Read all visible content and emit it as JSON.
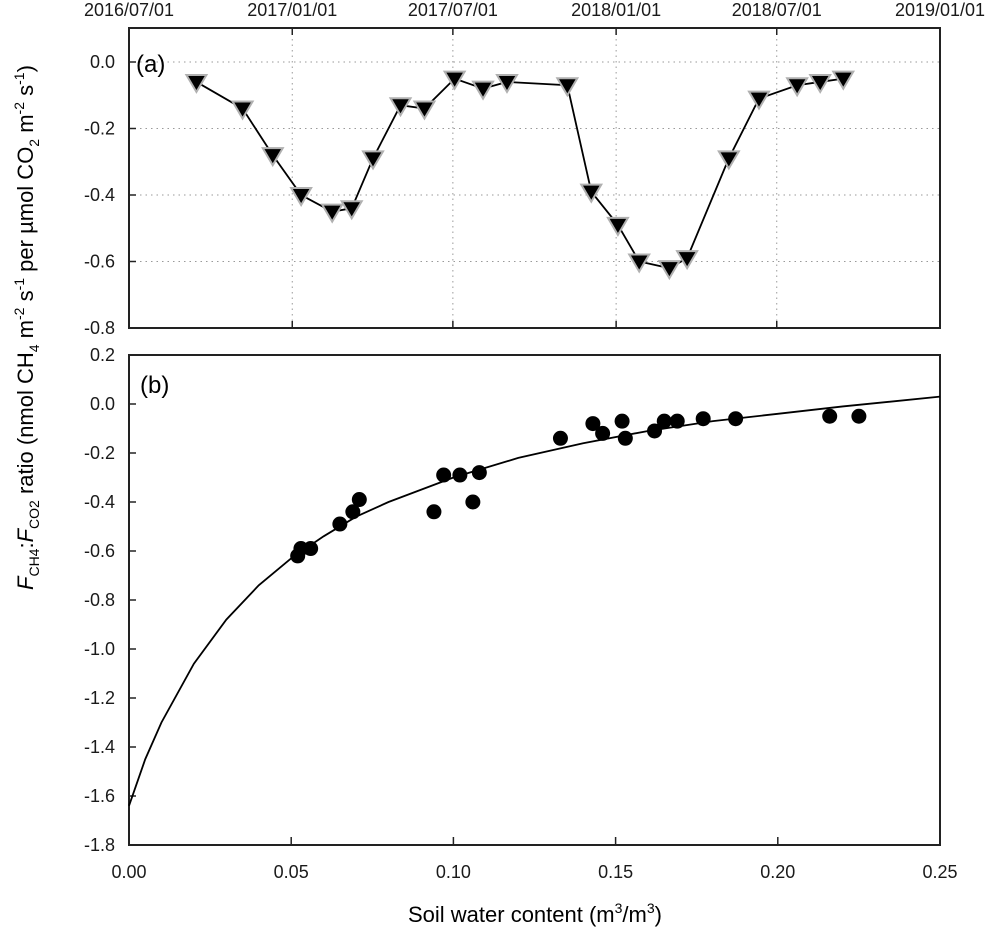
{
  "chart_data": [
    {
      "panel": "(a)",
      "type": "line",
      "marker": "triangle-down",
      "top_axis_label": "",
      "x_tick_labels": [
        "2016/07/01",
        "2017/01/01",
        "2017/07/01",
        "2018/01/01",
        "2018/07/01",
        "2019/01/01"
      ],
      "x_range": [
        "2016/07/01",
        "2019/01/01"
      ],
      "ylim": [
        -0.8,
        0.1
      ],
      "y_ticks": [
        0.0,
        -0.2,
        -0.4,
        -0.6,
        -0.8
      ],
      "y_tick_labels": [
        "0.0",
        "-0.2",
        "-0.4",
        "-0.6",
        "-0.8"
      ],
      "grid": true,
      "series": [
        {
          "name": "FCH4:FCO2 ratio",
          "x": [
            "2016/09/15",
            "2016/11/06",
            "2016/12/10",
            "2017/01/11",
            "2017/02/15",
            "2017/03/09",
            "2017/04/02",
            "2017/05/03",
            "2017/05/30",
            "2017/07/03",
            "2017/08/04",
            "2017/08/31",
            "2017/11/07",
            "2017/12/04",
            "2018/01/03",
            "2018/01/27",
            "2018/03/02",
            "2018/03/22",
            "2018/05/08",
            "2018/06/11",
            "2018/07/24",
            "2018/08/19",
            "2018/09/14"
          ],
          "values": [
            -0.06,
            -0.14,
            -0.28,
            -0.4,
            -0.45,
            -0.44,
            -0.29,
            -0.13,
            -0.14,
            -0.05,
            -0.08,
            -0.06,
            -0.07,
            -0.39,
            -0.49,
            -0.6,
            -0.62,
            -0.59,
            -0.29,
            -0.11,
            -0.07,
            -0.06,
            -0.05
          ]
        }
      ]
    },
    {
      "panel": "(b)",
      "type": "scatter",
      "marker": "circle",
      "xlabel": "Soil water content (m3/m3)",
      "ylabel": "FCH4:FCO2 ratio (nmol CH4 m-2 s-1 per µmol CO2 m-2 s-1)",
      "xlim": [
        0.0,
        0.25
      ],
      "ylim": [
        -1.8,
        0.2
      ],
      "x_tick_labels": [
        "0.00",
        "0.05",
        "0.10",
        "0.15",
        "0.20",
        "0.25"
      ],
      "y_tick_labels": [
        "0.2",
        "0.0",
        "-0.2",
        "-0.4",
        "-0.6",
        "-0.8",
        "-1.0",
        "-1.2",
        "-1.4",
        "-1.6",
        "-1.8"
      ],
      "grid": false,
      "series": [
        {
          "name": "observations",
          "x": [
            0.052,
            0.053,
            0.056,
            0.065,
            0.069,
            0.071,
            0.094,
            0.097,
            0.102,
            0.106,
            0.108,
            0.133,
            0.143,
            0.146,
            0.152,
            0.153,
            0.162,
            0.165,
            0.169,
            0.177,
            0.187,
            0.216,
            0.225
          ],
          "values": [
            -0.62,
            -0.59,
            -0.59,
            -0.49,
            -0.44,
            -0.39,
            -0.44,
            -0.29,
            -0.29,
            -0.4,
            -0.28,
            -0.14,
            -0.08,
            -0.12,
            -0.07,
            -0.14,
            -0.11,
            -0.07,
            -0.07,
            -0.06,
            -0.06,
            -0.05,
            -0.05
          ]
        },
        {
          "name": "fitted curve",
          "type": "line",
          "x": [
            0.0,
            0.005,
            0.01,
            0.02,
            0.03,
            0.04,
            0.05,
            0.06,
            0.07,
            0.08,
            0.1,
            0.12,
            0.14,
            0.16,
            0.18,
            0.2,
            0.22,
            0.25
          ],
          "values": [
            -1.64,
            -1.45,
            -1.3,
            -1.06,
            -0.88,
            -0.74,
            -0.63,
            -0.54,
            -0.46,
            -0.4,
            -0.3,
            -0.22,
            -0.16,
            -0.11,
            -0.07,
            -0.04,
            -0.01,
            0.03
          ]
        }
      ]
    }
  ],
  "labels": {
    "panel_a": "(a)",
    "panel_b": "(b)",
    "xlabel_main": "Soil water content (m",
    "xlabel_sup1": "3",
    "xlabel_mid": "/m",
    "xlabel_sup2": "3",
    "xlabel_end": ")"
  }
}
